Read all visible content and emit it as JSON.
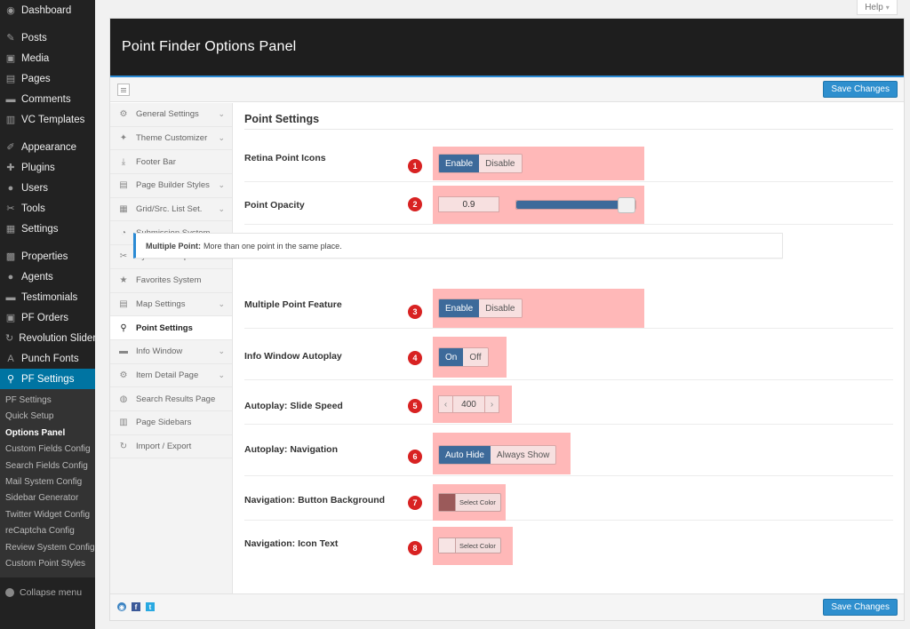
{
  "admin_menu": {
    "items": [
      {
        "label": "Dashboard",
        "icon": "dashboard-icon",
        "glyph": "◉"
      },
      {
        "sep": true
      },
      {
        "label": "Posts",
        "icon": "pin-icon",
        "glyph": "✎"
      },
      {
        "label": "Media",
        "icon": "media-icon",
        "glyph": "▣"
      },
      {
        "label": "Pages",
        "icon": "pages-icon",
        "glyph": "▤"
      },
      {
        "label": "Comments",
        "icon": "comment-icon",
        "glyph": "▬"
      },
      {
        "label": "VC Templates",
        "icon": "vc-icon",
        "glyph": "▥"
      },
      {
        "sep": true
      },
      {
        "label": "Appearance",
        "icon": "brush-icon",
        "glyph": "✐"
      },
      {
        "label": "Plugins",
        "icon": "plugin-icon",
        "glyph": "✚"
      },
      {
        "label": "Users",
        "icon": "user-icon",
        "glyph": "●"
      },
      {
        "label": "Tools",
        "icon": "wrench-icon",
        "glyph": "✂"
      },
      {
        "label": "Settings",
        "icon": "settings-icon",
        "glyph": "▦"
      },
      {
        "sep": true
      },
      {
        "label": "Properties",
        "icon": "properties-icon",
        "glyph": "▩"
      },
      {
        "label": "Agents",
        "icon": "agents-icon",
        "glyph": "●"
      },
      {
        "label": "Testimonials",
        "icon": "testimonials-icon",
        "glyph": "▬"
      },
      {
        "label": "PF Orders",
        "icon": "orders-icon",
        "glyph": "▣"
      },
      {
        "label": "Revolution Slider",
        "icon": "refresh-icon",
        "glyph": "↻"
      },
      {
        "label": "Punch Fonts",
        "icon": "font-icon",
        "glyph": "A"
      },
      {
        "label": "PF Settings",
        "icon": "location-pin-icon",
        "glyph": "⚲",
        "active": true
      }
    ],
    "submenu": [
      {
        "label": "PF Settings"
      },
      {
        "label": "Quick Setup"
      },
      {
        "label": "Options Panel",
        "current": true
      },
      {
        "label": "Custom Fields Config"
      },
      {
        "label": "Search Fields Config"
      },
      {
        "label": "Mail System Config"
      },
      {
        "label": "Sidebar Generator"
      },
      {
        "label": "Twitter Widget Config"
      },
      {
        "label": "reCaptcha Config"
      },
      {
        "label": "Review System Config"
      },
      {
        "label": "Custom Point Styles"
      }
    ],
    "collapse_label": "Collapse menu"
  },
  "help": {
    "label": "Help",
    "arrow": "▾"
  },
  "panel": {
    "title": "Point Finder Options Panel",
    "save_label": "Save Changes"
  },
  "section_nav": [
    {
      "label": "General Settings",
      "icon": "gears-icon",
      "glyph": "⚙",
      "chevron": true
    },
    {
      "label": "Theme Customizer",
      "icon": "magic-wand-icon",
      "glyph": "✦",
      "chevron": true
    },
    {
      "label": "Footer Bar",
      "icon": "download-icon",
      "glyph": "⤓",
      "chevron": false
    },
    {
      "label": "Page Builder Styles",
      "icon": "layout-icon",
      "glyph": "▤",
      "chevron": true
    },
    {
      "label": "Grid/Src. List Set.",
      "icon": "grid-icon",
      "glyph": "▦",
      "chevron": true
    },
    {
      "label": "Submission System",
      "icon": "circle-arrow-icon",
      "glyph": "◔",
      "chevron": true
    },
    {
      "label": "System Setup",
      "icon": "wrench-icon",
      "glyph": "✂",
      "chevron": true
    },
    {
      "label": "Favorites System",
      "icon": "star-icon",
      "glyph": "★",
      "chevron": false
    },
    {
      "label": "Map Settings",
      "icon": "map-icon",
      "glyph": "▤",
      "chevron": true
    },
    {
      "label": "Point Settings",
      "icon": "map-marker-icon",
      "glyph": "⚲",
      "chevron": false,
      "active": true
    },
    {
      "label": "Info Window",
      "icon": "chat-icon",
      "glyph": "▬",
      "chevron": true
    },
    {
      "label": "Item Detail Page",
      "icon": "gear-icon",
      "glyph": "⚙",
      "chevron": true
    },
    {
      "label": "Search Results Page",
      "icon": "search-icon",
      "glyph": "◍",
      "chevron": false
    },
    {
      "label": "Page Sidebars",
      "icon": "sidebar-icon",
      "glyph": "▥",
      "chevron": false
    },
    {
      "label": "Import / Export",
      "icon": "sync-icon",
      "glyph": "↻",
      "chevron": false
    }
  ],
  "content": {
    "section_title": "Point Settings",
    "info": {
      "label": "Multiple Point:",
      "text": "More than one point in the same place."
    },
    "fields": {
      "retina": {
        "label": "Retina Point Icons",
        "badge": "1",
        "options": [
          "Enable",
          "Disable"
        ],
        "selected": 0
      },
      "opacity": {
        "label": "Point Opacity",
        "badge": "2",
        "value": "0.9",
        "fill": 0.9
      },
      "multiple": {
        "label": "Multiple Point Feature",
        "badge": "3",
        "options": [
          "Enable",
          "Disable"
        ],
        "selected": 0
      },
      "autoplay": {
        "label": "Info Window Autoplay",
        "badge": "4",
        "options": [
          "On",
          "Off"
        ],
        "selected": 0
      },
      "speed": {
        "label": "Autoplay: Slide Speed",
        "badge": "5",
        "value": "400",
        "dec": "‹",
        "inc": "›"
      },
      "navigation": {
        "label": "Autoplay: Navigation",
        "badge": "6",
        "options": [
          "Auto Hide",
          "Always Show"
        ],
        "selected": 0
      },
      "btn_bg": {
        "label": "Navigation: Button Background",
        "badge": "7",
        "button": "Select Color",
        "color": "#9b5a5a"
      },
      "icon_text": {
        "label": "Navigation: Icon Text",
        "badge": "8",
        "button": "Select Color",
        "color": "#f7e4e4"
      }
    }
  },
  "footer": {
    "icons": [
      {
        "name": "shield-icon",
        "glyph": "◉",
        "color": "#3b83c2"
      },
      {
        "name": "facebook-icon",
        "glyph": "f",
        "color": "#3b5998"
      },
      {
        "name": "twitter-icon",
        "glyph": "t",
        "color": "#29a9e1"
      }
    ]
  },
  "colors": {
    "accent": "#2e8fce",
    "highlight": "#ffb8b8",
    "badge": "#d82222",
    "toggle_on": "#3d6a9a"
  }
}
